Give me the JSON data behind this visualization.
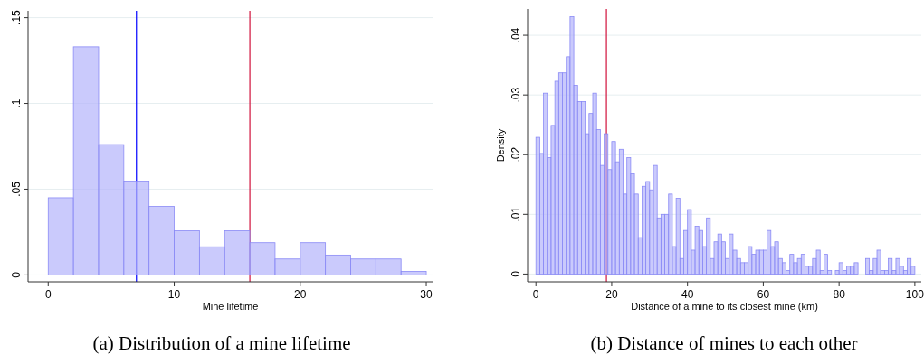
{
  "chart_data": [
    {
      "type": "histogram",
      "title": "(a) Distribution of a mine lifetime",
      "xlabel": "Mine lifetime",
      "color": "#b3b3fb",
      "bins": [
        0,
        2,
        4,
        6,
        8,
        10,
        12,
        14,
        16,
        18,
        20,
        22,
        24,
        26,
        28,
        30
      ],
      "values": [
        0.045,
        0.133,
        0.076,
        0.0547,
        0.04,
        0.0258,
        0.0164,
        0.0258,
        0.0188,
        0.0093,
        0.0188,
        0.0116,
        0.0093,
        0.0093,
        0.0021
      ],
      "xlim": [
        -1.6,
        30.5
      ],
      "xticks": [
        0,
        10,
        20,
        30
      ],
      "ylim": [
        -0.004,
        0.154
      ],
      "yticks": [
        {
          "value": 0,
          "label": "0"
        },
        {
          "value": 0.05,
          "label": ".05"
        },
        {
          "value": 0.1,
          "label": ".1"
        },
        {
          "value": 0.15,
          "label": ".15"
        }
      ],
      "grid": "y",
      "ref_lines": [
        {
          "axis": "x",
          "value": 7,
          "color": "#0000ff"
        },
        {
          "axis": "x",
          "value": 16,
          "color": "#d0103a"
        }
      ]
    },
    {
      "type": "histogram",
      "title": "(b) Distance of mines to each other",
      "xlabel": "Distance of a mine to its closest mine (km)",
      "ylabel": "Density",
      "color": "#b3b3fb",
      "bins": [
        0,
        1,
        2,
        3,
        4,
        5,
        6,
        7,
        8,
        9,
        10,
        11,
        12,
        13,
        14,
        15,
        16,
        17,
        18,
        19,
        20,
        21,
        22,
        23,
        24,
        25,
        26,
        27,
        28,
        29,
        30,
        31,
        32,
        33,
        34,
        35,
        36,
        37,
        38,
        39,
        40,
        41,
        42,
        43,
        44,
        45,
        46,
        47,
        48,
        49,
        50,
        51,
        52,
        53,
        54,
        55,
        56,
        57,
        58,
        59,
        60,
        61,
        62,
        63,
        64,
        65,
        66,
        67,
        68,
        69,
        70,
        71,
        72,
        73,
        74,
        75,
        76,
        77,
        78,
        79,
        80,
        81,
        82,
        83,
        84,
        85,
        86,
        87,
        88,
        89,
        90,
        91,
        92,
        93,
        94,
        95,
        96,
        97,
        98,
        99,
        100
      ],
      "values": [
        0.0229,
        0.0202,
        0.0303,
        0.0195,
        0.0249,
        0.0323,
        0.0337,
        0.0337,
        0.0364,
        0.0431,
        0.0316,
        0.0289,
        0.0289,
        0.0235,
        0.0269,
        0.0303,
        0.0242,
        0.0182,
        0.0235,
        0.0175,
        0.0222,
        0.0188,
        0.0209,
        0.0134,
        0.0195,
        0.0168,
        0.0134,
        0.0061,
        0.0147,
        0.0155,
        0.0141,
        0.0182,
        0.0094,
        0.01,
        0.01,
        0.0134,
        0.0046,
        0.0127,
        0.0026,
        0.0073,
        0.0108,
        0.004,
        0.008,
        0.0073,
        0.0046,
        0.0094,
        0.0026,
        0.0054,
        0.0067,
        0.0054,
        0.0026,
        0.0067,
        0.004,
        0.0026,
        0.0019,
        0.0019,
        0.0046,
        0.0033,
        0.004,
        0.004,
        0.004,
        0.0073,
        0.0046,
        0.0054,
        0.0026,
        0.0019,
        0.0006,
        0.0033,
        0.0019,
        0.0026,
        0.0033,
        0.0013,
        0.0013,
        0.0026,
        0.004,
        0.0006,
        0.0033,
        0.0006,
        0,
        0.0006,
        0.0019,
        0.0006,
        0.0013,
        0.0013,
        0.0019,
        0,
        0,
        0.0026,
        0.0006,
        0.0026,
        0.004,
        0.0006,
        0.0006,
        0.0026,
        0.0006,
        0.0026,
        0.0013,
        0.0006,
        0.0026,
        0.0013
      ],
      "xlim": [
        -2.2,
        101.7
      ],
      "xticks": [
        0,
        20,
        40,
        60,
        80,
        100
      ],
      "ylim": [
        -0.0013,
        0.0444
      ],
      "yticks": [
        {
          "value": 0,
          "label": "0"
        },
        {
          "value": 0.01,
          "label": ".01"
        },
        {
          "value": 0.02,
          "label": ".02"
        },
        {
          "value": 0.03,
          "label": ".03"
        },
        {
          "value": 0.04,
          "label": ".04"
        }
      ],
      "grid": "y",
      "ref_lines": [
        {
          "axis": "x",
          "value": 18.6,
          "color": "#d0103a"
        }
      ]
    }
  ]
}
